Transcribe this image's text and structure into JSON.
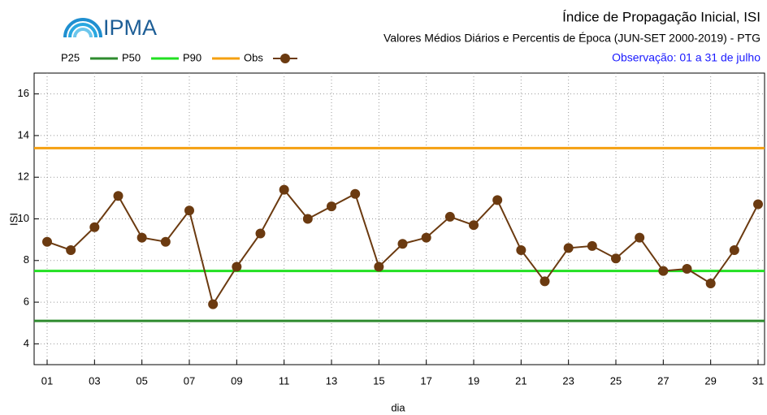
{
  "logo": "IPMA",
  "chart_data": {
    "type": "line",
    "title": "Índice de Propagação Inicial, ISI",
    "subtitle": "Valores Médios Diários e Percentis de Época (JUN-SET 2000-2019) - PTG",
    "note": "Observação: 01 a 31 de julho",
    "xlabel": "dia",
    "ylabel": "ISI",
    "categories": [
      "01",
      null,
      "03",
      null,
      "05",
      null,
      "07",
      null,
      "09",
      null,
      "11",
      null,
      "13",
      null,
      "15",
      null,
      "17",
      null,
      "19",
      null,
      "21",
      null,
      "23",
      null,
      "25",
      null,
      "27",
      null,
      "29",
      null,
      "31"
    ],
    "ylim": [
      3,
      17
    ],
    "yticks": [
      4,
      6,
      8,
      10,
      12,
      14,
      16
    ],
    "grid": true,
    "reference_lines": [
      {
        "name": "P25",
        "color": "#2e8b2e",
        "value": 5.1
      },
      {
        "name": "P50",
        "color": "#22e022",
        "value": 7.5
      },
      {
        "name": "P90",
        "color": "#f5a010",
        "value": 13.4
      }
    ],
    "series": [
      {
        "name": "Obs",
        "color": "#6b3a10",
        "values": [
          8.9,
          8.5,
          9.6,
          11.1,
          9.1,
          8.9,
          10.4,
          5.9,
          7.7,
          9.3,
          11.4,
          10.0,
          10.6,
          11.2,
          7.7,
          8.8,
          9.1,
          10.1,
          9.7,
          10.9,
          8.5,
          7.0,
          8.6,
          8.7,
          8.1,
          9.1,
          7.5,
          7.6,
          6.9,
          8.5,
          10.7
        ]
      }
    ]
  }
}
